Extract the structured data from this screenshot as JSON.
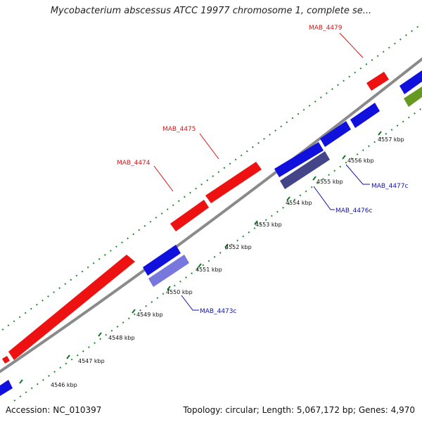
{
  "title": "Mycobacterium abscessus ATCC 19977 chromosome 1, complete se...",
  "footer": {
    "accession": "Accession: NC_010397",
    "stats": "Topology: circular; Length: 5,067,172 bp; Genes: 4,970"
  },
  "colors": {
    "forward": "#ee1111",
    "reverse": "#1111dd",
    "reverse_light": "#7777dd",
    "reverse_dark": "#444488",
    "other": "#669922",
    "backbone": "#8a8a8a",
    "ticks": "#228833",
    "label_forward": "#dd1111",
    "label_reverse": "#1111aa"
  },
  "scale": {
    "ticks": [
      {
        "label": "4546 kbp"
      },
      {
        "label": "4547 kbp"
      },
      {
        "label": "4548 kbp"
      },
      {
        "label": "4549 kbp"
      },
      {
        "label": "4550 kbp"
      },
      {
        "label": "4551 kbp"
      },
      {
        "label": "4552 kbp"
      },
      {
        "label": "4553 kbp"
      },
      {
        "label": "4554 kbp"
      },
      {
        "label": "4555 kbp"
      },
      {
        "label": "4556 kbp"
      },
      {
        "label": "4557 kbp"
      }
    ]
  },
  "gene_labels": [
    {
      "text": "MAB_4479",
      "strand": "forward"
    },
    {
      "text": "MAB_4475",
      "strand": "forward"
    },
    {
      "text": "MAB_4474",
      "strand": "forward"
    },
    {
      "text": "MAB_4477c",
      "strand": "reverse"
    },
    {
      "text": "MAB_4476c",
      "strand": "reverse"
    },
    {
      "text": "MAB_4473c",
      "strand": "reverse"
    }
  ]
}
